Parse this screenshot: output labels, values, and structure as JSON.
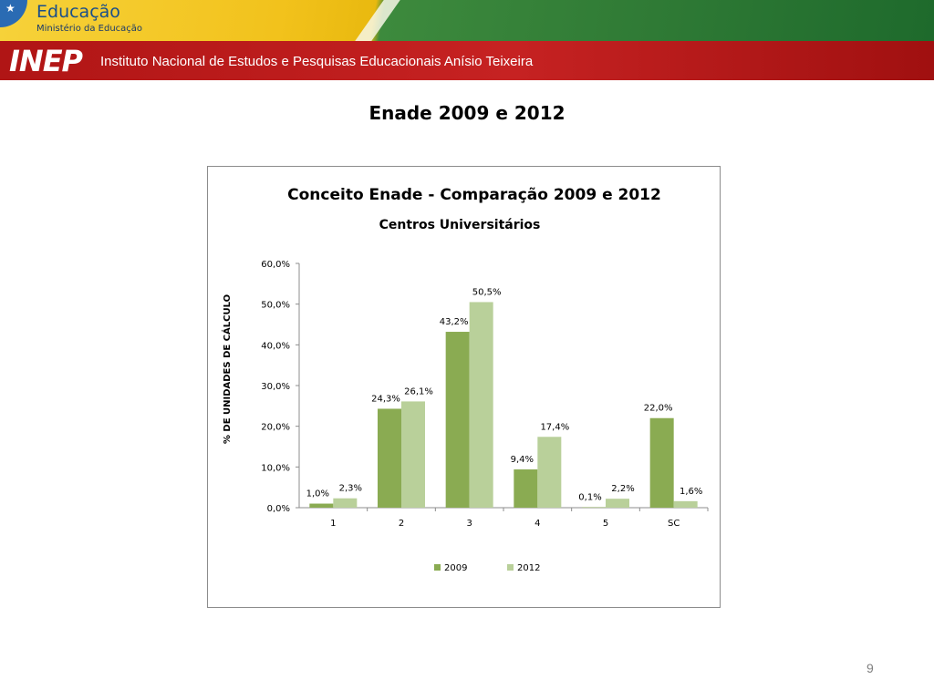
{
  "header": {
    "brand_title": "Educação",
    "brand_subtitle": "Ministério da Educação",
    "inep_logo": "INEP",
    "institute_name": "Instituto Nacional de Estudos e Pesquisas Educacionais Anísio Teixeira"
  },
  "slide": {
    "title": "Enade 2009 e 2012",
    "page_number": "9"
  },
  "colors": {
    "series_2009": "#8aab52",
    "series_2012": "#b9d09a",
    "header_red": "#c62222",
    "header_green": "#2f7a35",
    "header_yellow": "#f2c21c"
  },
  "chart_data": {
    "type": "bar",
    "title": "Conceito  Enade  - Comparação  2009 e 2012",
    "subtitle": "Centros Universitários",
    "xlabel": "",
    "ylabel": "% DE UNIDADES  DE CÁLCULO",
    "categories": [
      "1",
      "2",
      "3",
      "4",
      "5",
      "SC"
    ],
    "ylim": [
      0,
      60
    ],
    "yticks": [
      "0,0%",
      "10,0%",
      "20,0%",
      "30,0%",
      "40,0%",
      "50,0%",
      "60,0%"
    ],
    "grid": false,
    "legend_position": "bottom",
    "series": [
      {
        "name": "2009",
        "values": [
          1.0,
          24.3,
          43.2,
          9.4,
          0.1,
          22.0
        ],
        "labels": [
          "1,0%",
          "24,3%",
          "43,2%",
          "9,4%",
          "0,1%",
          "22,0%"
        ]
      },
      {
        "name": "2012",
        "values": [
          2.3,
          26.1,
          50.5,
          17.4,
          2.2,
          1.6
        ],
        "labels": [
          "2,3%",
          "26,1%",
          "50,5%",
          "17,4%",
          "2,2%",
          "1,6%"
        ]
      }
    ]
  }
}
